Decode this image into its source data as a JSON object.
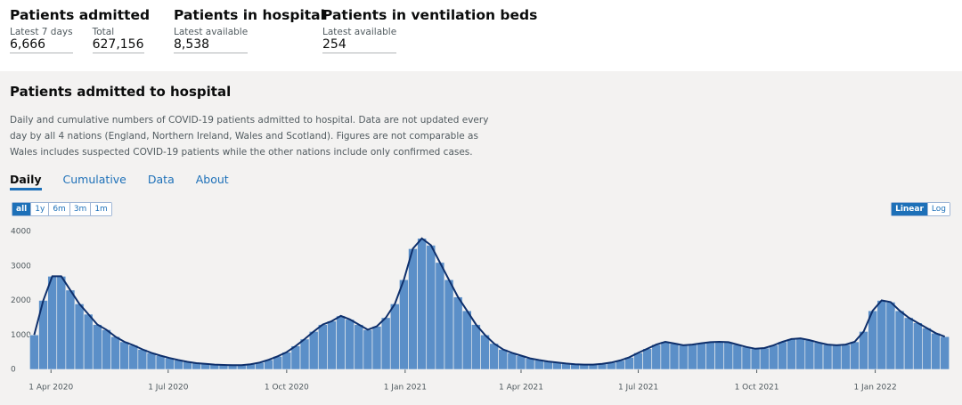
{
  "headline": [
    {
      "title": "Patients admitted",
      "metrics": [
        {
          "label": "Latest 7 days",
          "value": "6,666"
        },
        {
          "label": "Total",
          "value": "627,156"
        }
      ]
    },
    {
      "title": "Patients in hospital",
      "metrics": [
        {
          "label": "Latest available",
          "value": "8,538"
        }
      ]
    },
    {
      "title": "Patients in ventilation beds",
      "metrics": [
        {
          "label": "Latest available",
          "value": "254"
        }
      ]
    }
  ],
  "card": {
    "title": "Patients admitted to hospital",
    "description": "Daily and cumulative numbers of COVID-19 patients admitted to hospital. Data are not updated every day by all 4 nations (England, Northern Ireland, Wales and Scotland). Figures are not comparable as Wales includes suspected COVID-19 patients while the other nations include only confirmed cases.",
    "tabs": [
      "Daily",
      "Cumulative",
      "Data",
      "About"
    ],
    "range_buttons": [
      "all",
      "1y",
      "6m",
      "3m",
      "1m"
    ],
    "scale_buttons": [
      "Linear",
      "Log"
    ]
  },
  "chart_data": {
    "type": "bar",
    "color": "#5b8fc8",
    "line_color": "#0e2f6b",
    "log_scale": false,
    "x": [
      "2020-03-19",
      "2020-03-26",
      "2020-04-02",
      "2020-04-09",
      "2020-04-16",
      "2020-04-23",
      "2020-04-30",
      "2020-05-07",
      "2020-05-14",
      "2020-05-21",
      "2020-05-28",
      "2020-06-04",
      "2020-06-11",
      "2020-06-18",
      "2020-06-25",
      "2020-07-02",
      "2020-07-09",
      "2020-07-16",
      "2020-07-23",
      "2020-07-30",
      "2020-08-06",
      "2020-08-13",
      "2020-08-20",
      "2020-08-27",
      "2020-09-03",
      "2020-09-10",
      "2020-09-17",
      "2020-09-24",
      "2020-10-01",
      "2020-10-08",
      "2020-10-15",
      "2020-10-22",
      "2020-10-29",
      "2020-11-05",
      "2020-11-12",
      "2020-11-19",
      "2020-11-26",
      "2020-12-03",
      "2020-12-10",
      "2020-12-17",
      "2020-12-24",
      "2020-12-31",
      "2021-01-07",
      "2021-01-14",
      "2021-01-21",
      "2021-01-28",
      "2021-02-04",
      "2021-02-11",
      "2021-02-18",
      "2021-02-25",
      "2021-03-04",
      "2021-03-11",
      "2021-03-18",
      "2021-03-25",
      "2021-04-01",
      "2021-04-08",
      "2021-04-15",
      "2021-04-22",
      "2021-04-29",
      "2021-05-06",
      "2021-05-13",
      "2021-05-20",
      "2021-05-27",
      "2021-06-03",
      "2021-06-10",
      "2021-06-17",
      "2021-06-24",
      "2021-07-01",
      "2021-07-08",
      "2021-07-15",
      "2021-07-22",
      "2021-07-29",
      "2021-08-05",
      "2021-08-12",
      "2021-08-19",
      "2021-08-26",
      "2021-09-02",
      "2021-09-09",
      "2021-09-16",
      "2021-09-23",
      "2021-09-30",
      "2021-10-07",
      "2021-10-14",
      "2021-10-21",
      "2021-10-28",
      "2021-11-04",
      "2021-11-11",
      "2021-11-18",
      "2021-11-25",
      "2021-12-02",
      "2021-12-09",
      "2021-12-16",
      "2021-12-23",
      "2021-12-30",
      "2022-01-06",
      "2022-01-13",
      "2022-01-20",
      "2022-01-27",
      "2022-02-03",
      "2022-02-10",
      "2022-02-17",
      "2022-02-24"
    ],
    "values": [
      1000,
      2000,
      2700,
      2700,
      2300,
      1900,
      1600,
      1300,
      1150,
      950,
      800,
      700,
      580,
      480,
      400,
      330,
      270,
      220,
      180,
      160,
      140,
      130,
      120,
      120,
      150,
      200,
      280,
      380,
      500,
      680,
      880,
      1100,
      1300,
      1400,
      1550,
      1450,
      1300,
      1150,
      1250,
      1500,
      1900,
      2600,
      3500,
      3800,
      3600,
      3100,
      2600,
      2100,
      1700,
      1300,
      1000,
      750,
      580,
      480,
      400,
      320,
      270,
      230,
      200,
      170,
      150,
      140,
      140,
      160,
      200,
      260,
      350,
      480,
      600,
      720,
      800,
      750,
      700,
      720,
      760,
      790,
      800,
      790,
      720,
      650,
      600,
      620,
      700,
      800,
      880,
      900,
      850,
      780,
      720,
      700,
      720,
      800,
      1100,
      1700,
      2000,
      1950,
      1700,
      1500,
      1350,
      1200,
      1050,
      950
    ],
    "xlim": [
      "2020-03-18",
      "2022-02-27"
    ],
    "xticks": [
      {
        "value": "2020-04-01",
        "label": "1 Apr 2020"
      },
      {
        "value": "2020-07-01",
        "label": "1 Jul 2020"
      },
      {
        "value": "2020-10-01",
        "label": "1 Oct 2020"
      },
      {
        "value": "2021-01-01",
        "label": "1 Jan 2021"
      },
      {
        "value": "2021-04-01",
        "label": "1 Apr 2021"
      },
      {
        "value": "2021-07-01",
        "label": "1 Jul 2021"
      },
      {
        "value": "2021-10-01",
        "label": "1 Oct 2021"
      },
      {
        "value": "2022-01-01",
        "label": "1 Jan 2022"
      }
    ],
    "ylim": [
      0,
      4000
    ],
    "yticks": [
      0,
      1000,
      2000,
      3000,
      4000
    ]
  }
}
